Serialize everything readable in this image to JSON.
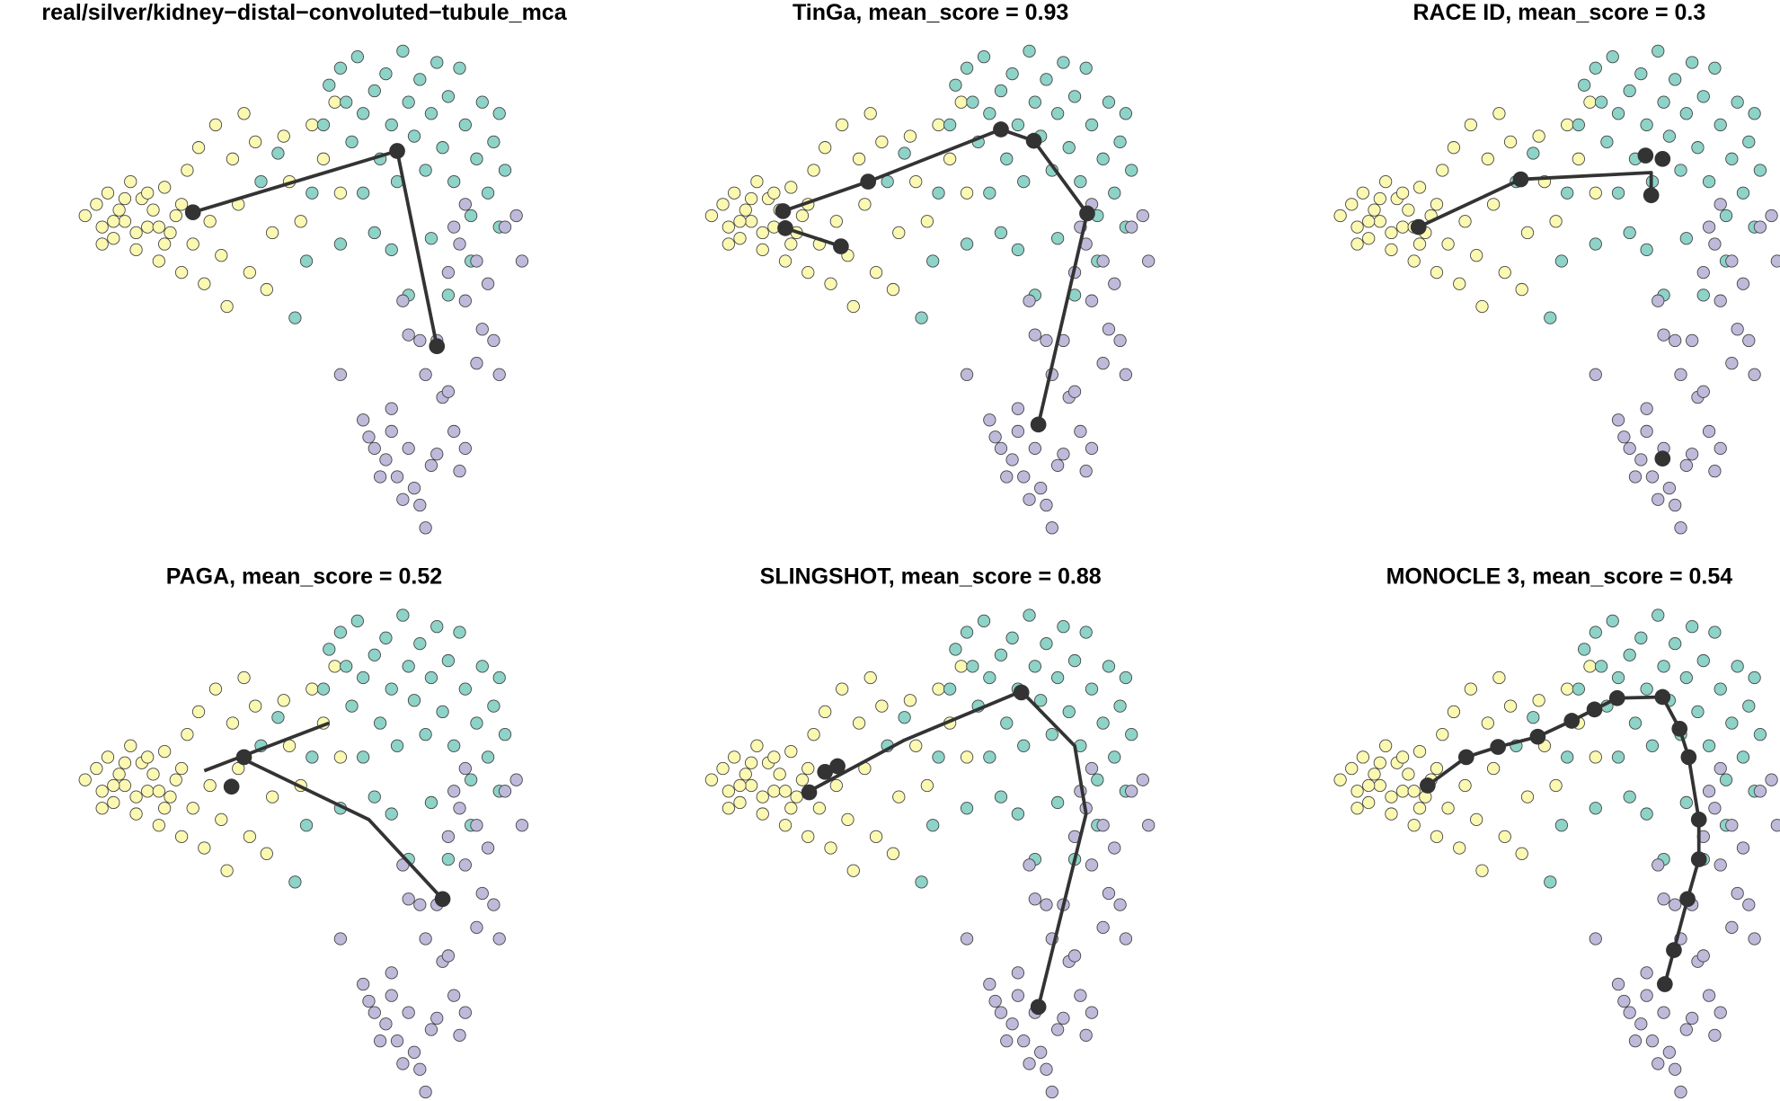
{
  "cells": {
    "series": [
      {
        "color": "#fbf8b1",
        "x": [
          75,
          85,
          90,
          95,
          100,
          105,
          110,
          115,
          120,
          125,
          130,
          135,
          140,
          145,
          150,
          155,
          160,
          165,
          170,
          175,
          180,
          185,
          190,
          195,
          200,
          205,
          210,
          215,
          220,
          225,
          235,
          240,
          250,
          255,
          265,
          275,
          285,
          295,
          300,
          120,
          90,
          110,
          140,
          160,
          100,
          130,
          145
        ],
        "y": [
          190,
          180,
          200,
          170,
          210,
          185,
          195,
          160,
          220,
          175,
          200,
          185,
          230,
          165,
          205,
          190,
          240,
          150,
          215,
          130,
          250,
          195,
          110,
          225,
          270,
          140,
          180,
          100,
          240,
          125,
          255,
          205,
          120,
          160,
          195,
          110,
          140,
          90,
          170,
          205,
          215,
          175,
          200,
          180,
          195,
          170,
          215
        ]
      },
      {
        "color": "#8dd3c7",
        "x": [
          230,
          245,
          260,
          270,
          285,
          290,
          300,
          305,
          310,
          315,
          320,
          330,
          335,
          340,
          345,
          350,
          355,
          360,
          365,
          370,
          375,
          380,
          385,
          390,
          395,
          400,
          405,
          410,
          415,
          420,
          425,
          430,
          435,
          440,
          445,
          360,
          380,
          395,
          320,
          300,
          275,
          330,
          345,
          415,
          440
        ],
        "y": [
          160,
          135,
          280,
          230,
          110,
          75,
          60,
          90,
          125,
          50,
          100,
          80,
          140,
          65,
          110,
          160,
          45,
          90,
          120,
          70,
          150,
          100,
          55,
          130,
          85,
          160,
          60,
          110,
          190,
          140,
          90,
          170,
          125,
          100,
          150,
          260,
          210,
          260,
          170,
          215,
          170,
          205,
          220,
          230,
          200
        ]
      },
      {
        "color": "#bebada",
        "x": [
          300,
          320,
          325,
          330,
          340,
          345,
          350,
          355,
          360,
          365,
          370,
          375,
          380,
          385,
          390,
          395,
          400,
          405,
          410,
          355,
          360,
          370,
          385,
          395,
          405,
          410,
          420,
          425,
          430,
          435,
          440,
          445,
          455,
          460,
          410,
          400,
          420,
          375,
          345,
          335
        ],
        "y": [
          330,
          370,
          385,
          395,
          405,
          380,
          420,
          440,
          395,
          430,
          445,
          465,
          410,
          400,
          350,
          345,
          380,
          415,
          395,
          265,
          295,
          300,
          300,
          240,
          215,
          265,
          230,
          290,
          250,
          300,
          330,
          200,
          190,
          230,
          180,
          200,
          320,
          330,
          360,
          420
        ]
      }
    ]
  },
  "chart_data": [
    {
      "type": "scatter",
      "title": "real/silver/kidney−distal−convoluted−tubule_mca",
      "trajectory": [
        {
          "x": [
            170,
            350,
            385
          ],
          "y": [
            187,
            133,
            305
          ]
        }
      ],
      "nodes": {
        "x": [
          170,
          350,
          385
        ],
        "y": [
          187,
          133,
          305
        ]
      }
    },
    {
      "type": "scatter",
      "title": "TinGa, mean_score = 0.93",
      "trajectory": [
        {
          "x": [
            189,
            140
          ],
          "y": [
            217,
            201
          ]
        },
        {
          "x": [
            138,
            213,
            330,
            359,
            406,
            363
          ],
          "y": [
            186,
            160,
            114,
            124,
            188,
            374
          ]
        }
      ],
      "nodes": {
        "x": [
          189,
          140,
          138,
          213,
          330,
          359,
          406,
          363
        ],
        "y": [
          217,
          201,
          186,
          160,
          114,
          124,
          188,
          374
        ]
      }
    },
    {
      "type": "scatter",
      "title": "RACE ID, mean_score = 0.3",
      "trajectory": [
        {
          "x": [
            144,
            234,
            349,
            349
          ],
          "y": [
            200,
            158,
            152,
            172
          ]
        }
      ],
      "nodes": {
        "x": [
          144,
          234,
          344,
          359,
          349,
          359
        ],
        "y": [
          200,
          158,
          137,
          140,
          172,
          404
        ]
      }
    },
    {
      "type": "scatter",
      "title": "PAGA, mean_score = 0.52",
      "trajectory": [
        {
          "x": [
            180,
            290
          ],
          "y": [
            182,
            140
          ]
        },
        {
          "x": [
            215,
            325,
            390
          ],
          "y": [
            172,
            225,
            295
          ]
        }
      ],
      "nodes": {
        "x": [
          204,
          215,
          390
        ],
        "y": [
          196,
          170,
          295
        ]
      }
    },
    {
      "type": "scatter",
      "title": "SLINGSHOT, mean_score = 0.88",
      "trajectory": [
        {
          "x": [
            161,
            245,
            348,
            395,
            405,
            363
          ],
          "y": [
            200,
            155,
            112,
            160,
            220,
            390
          ]
        }
      ],
      "nodes": {
        "x": [
          161,
          186,
          175,
          348,
          363
        ],
        "y": [
          201,
          178,
          183,
          113,
          390
        ]
      }
    },
    {
      "type": "scatter",
      "title": "MONOCLE 3, mean_score = 0.54",
      "trajectory": [
        {
          "x": [
            152,
            186,
            214,
            249,
            279,
            299,
            319,
            359,
            374,
            382,
            391,
            391,
            381,
            369,
            361
          ],
          "y": [
            195,
            170,
            161,
            152,
            138,
            128,
            118,
            117,
            145,
            170,
            225,
            260,
            295,
            340,
            370
          ]
        }
      ],
      "nodes": {
        "x": [
          152,
          186,
          214,
          249,
          279,
          299,
          319,
          359,
          374,
          382,
          391,
          391,
          381,
          369,
          361
        ],
        "y": [
          195,
          170,
          161,
          152,
          138,
          128,
          118,
          117,
          145,
          170,
          225,
          260,
          295,
          340,
          370
        ]
      }
    }
  ]
}
